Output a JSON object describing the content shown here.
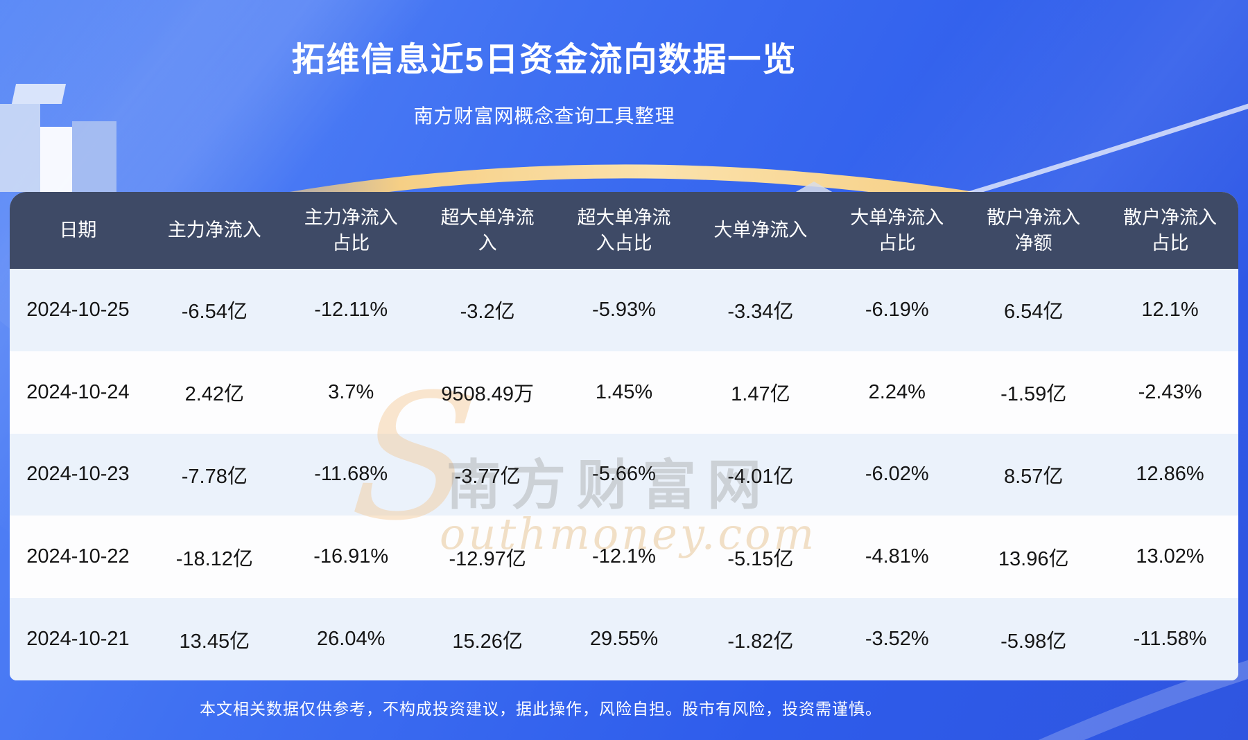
{
  "page": {
    "title": "拓维信息近5日资金流向数据一览",
    "subtitle": "南方财富网概念查询工具整理",
    "disclaimer": "本文相关数据仅供参考，不构成投资建议，据此操作，风险自担。股市有风险，投资需谨慎。"
  },
  "watermark": {
    "brand": "南方财富网",
    "domain_initial": "S",
    "domain_rest": "outhmoney.com"
  },
  "chart_data": {
    "type": "table",
    "title": "拓维信息近5日资金流向数据一览",
    "subtitle": "南方财富网概念查询工具整理",
    "columns": [
      "日期",
      "主力净流入",
      "主力净流入占比",
      "超大单净流入",
      "超大单净流入占比",
      "大单净流入",
      "大单净流入占比",
      "散户净流入净额",
      "散户净流入占比"
    ],
    "rows": [
      [
        "2024-10-25",
        "-6.54亿",
        "-12.11%",
        "-3.2亿",
        "-5.93%",
        "-3.34亿",
        "-6.19%",
        "6.54亿",
        "12.1%"
      ],
      [
        "2024-10-24",
        "2.42亿",
        "3.7%",
        "9508.49万",
        "1.45%",
        "1.47亿",
        "2.24%",
        "-1.59亿",
        "-2.43%"
      ],
      [
        "2024-10-23",
        "-7.78亿",
        "-11.68%",
        "-3.77亿",
        "-5.66%",
        "-4.01亿",
        "-6.02%",
        "8.57亿",
        "12.86%"
      ],
      [
        "2024-10-22",
        "-18.12亿",
        "-16.91%",
        "-12.97亿",
        "-12.1%",
        "-5.15亿",
        "-4.81%",
        "13.96亿",
        "13.02%"
      ],
      [
        "2024-10-21",
        "13.45亿",
        "26.04%",
        "15.26亿",
        "29.55%",
        "-1.82亿",
        "-3.52%",
        "-5.98亿",
        "-11.58%"
      ]
    ],
    "layout": {
      "header_bg": "#3e4a66",
      "row_alt_bg": "#ebf2fb",
      "row_bg": "#fdfdfe",
      "background_blue": "#3a6cf0",
      "accent_gold": "#f6cf85",
      "text_light": "#ffffff",
      "text_dark": "#151515"
    }
  }
}
